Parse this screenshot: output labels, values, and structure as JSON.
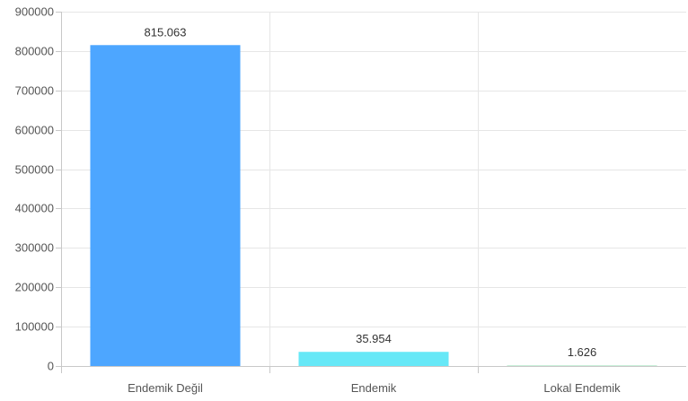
{
  "chart_data": {
    "type": "bar",
    "categories": [
      "Endemik Değil",
      "Endemik",
      "Lokal Endemik"
    ],
    "values": [
      815063,
      35954,
      1626
    ],
    "value_labels": [
      "815.063",
      "35.954",
      "1.626"
    ],
    "y_ticks": [
      "0",
      "100000",
      "200000",
      "300000",
      "400000",
      "500000",
      "600000",
      "700000",
      "800000",
      "900000"
    ],
    "ylim": [
      0,
      900000
    ],
    "grid": true,
    "legend": "none",
    "colors": [
      "#4da6ff",
      "#66e8f7",
      "#c8efd9"
    ]
  }
}
